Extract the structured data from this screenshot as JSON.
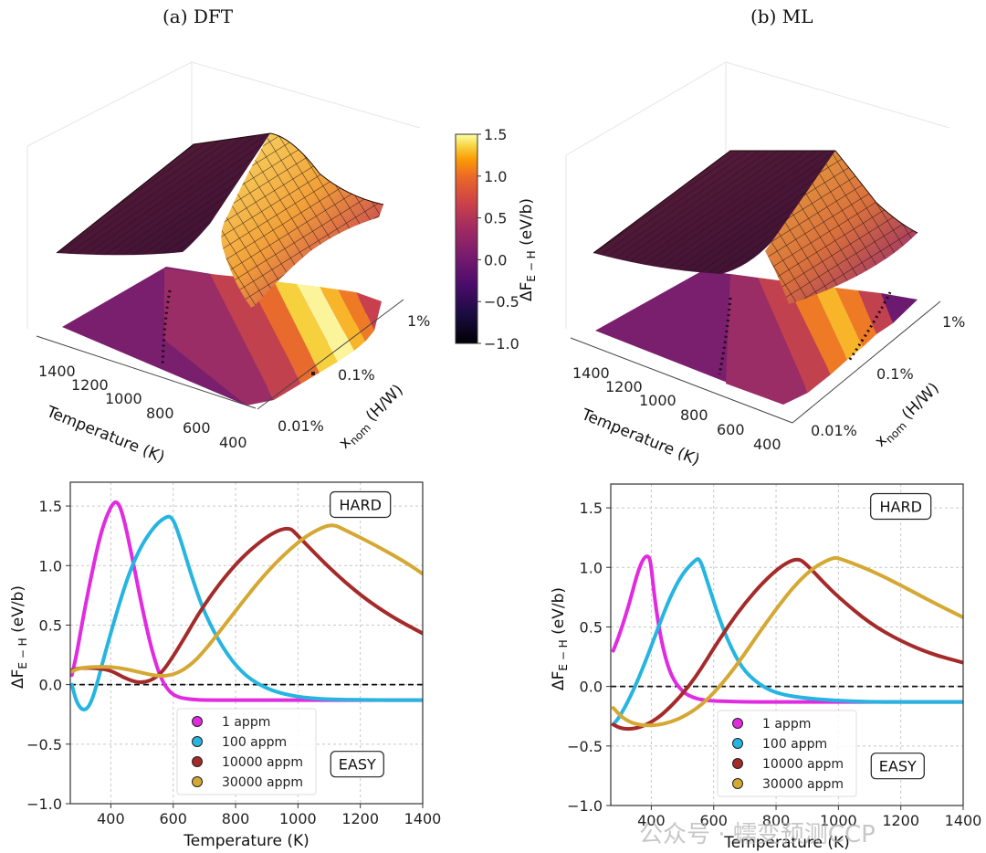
{
  "panels": [
    {
      "id": "a",
      "title": "(a) DFT"
    },
    {
      "id": "b",
      "title": "(b) ML"
    }
  ],
  "watermark": "公众号 · 蠕变预测CCP",
  "chart_data": [
    {
      "type": "surface3d",
      "panel": "(a) DFT",
      "xlabel": "Temperature (K)",
      "xticks": [
        "1400",
        "1200",
        "1000",
        "800",
        "600",
        "400"
      ],
      "ylabel": "x_nom (H/W)",
      "yticks": [
        "0.01%",
        "0.1%",
        "1%"
      ],
      "zlabel": "ΔF_{E−H} (eV/b)",
      "colormap": "inferno",
      "colorbar": {
        "label": "ΔF_{E-H} (eV/b)",
        "range": [
          -1.0,
          1.5
        ],
        "ticks": [
          "1.5",
          "1.0",
          "0.5",
          "0.0",
          "−0.5",
          "−1.0"
        ]
      },
      "description": "Surface with ridge of max ~1.5 eV/b, projected filled contour on floor with dotted zero-level line"
    },
    {
      "type": "surface3d",
      "panel": "(b) ML",
      "xlabel": "Temperature (K)",
      "xticks": [
        "1400",
        "1200",
        "1000",
        "800",
        "600",
        "400"
      ],
      "ylabel": "x_nom (H/W)",
      "yticks": [
        "0.01%",
        "0.1%",
        "1%"
      ],
      "colormap": "inferno",
      "description": "Surface with ridge of max ~1.1 eV/b, projected filled contour with two dotted zero-level lines"
    },
    {
      "type": "line",
      "panel": "(a) DFT",
      "xlabel": "Temperature (K)",
      "ylabel": "ΔF_{E−H} (eV/b)",
      "xlim": [
        270,
        1400
      ],
      "ylim": [
        -1.0,
        1.7
      ],
      "xticks": [
        "400",
        "600",
        "800",
        "1000",
        "1200",
        "1400"
      ],
      "yticks": [
        "−1.0",
        "−0.5",
        "0.0",
        "0.5",
        "1.0",
        "1.5"
      ],
      "grid": true,
      "zero_line": 0.0,
      "annotations": [
        "HARD",
        "EASY"
      ],
      "legend": "lower-center",
      "series": [
        {
          "name": "1 appm",
          "color": "#e02be0",
          "x": [
            275,
            290,
            310,
            340,
            370,
            400,
            420,
            440,
            470,
            500,
            530,
            560,
            590,
            620,
            660,
            700,
            800,
            900,
            1000,
            1200,
            1400
          ],
          "y": [
            0.08,
            0.25,
            0.55,
            0.95,
            1.3,
            1.5,
            1.55,
            1.42,
            1.05,
            0.65,
            0.3,
            0.05,
            -0.07,
            -0.11,
            -0.125,
            -0.13,
            -0.13,
            -0.13,
            -0.13,
            -0.13,
            -0.13
          ]
        },
        {
          "name": "100 appm",
          "color": "#25b5e0",
          "x": [
            275,
            290,
            310,
            330,
            350,
            380,
            420,
            460,
            500,
            540,
            570,
            595,
            620,
            660,
            700,
            760,
            820,
            880,
            950,
            1050,
            1200,
            1400
          ],
          "y": [
            0.0,
            -0.15,
            -0.22,
            -0.19,
            -0.05,
            0.25,
            0.62,
            0.95,
            1.18,
            1.33,
            1.4,
            1.42,
            1.25,
            0.9,
            0.6,
            0.3,
            0.1,
            -0.01,
            -0.08,
            -0.12,
            -0.13,
            -0.13
          ]
        },
        {
          "name": "10000 appm",
          "color": "#a52a2a",
          "x": [
            275,
            300,
            350,
            400,
            440,
            480,
            510,
            540,
            570,
            620,
            700,
            800,
            900,
            970,
            1000,
            1100,
            1200,
            1300,
            1400
          ],
          "y": [
            0.12,
            0.14,
            0.14,
            0.12,
            0.06,
            0.02,
            0.02,
            0.05,
            0.12,
            0.32,
            0.68,
            1.02,
            1.25,
            1.33,
            1.25,
            0.98,
            0.75,
            0.57,
            0.43
          ]
        },
        {
          "name": "30000 appm",
          "color": "#d4a833",
          "x": [
            275,
            300,
            350,
            400,
            450,
            500,
            550,
            600,
            650,
            700,
            800,
            900,
            1000,
            1060,
            1110,
            1150,
            1250,
            1350,
            1400
          ],
          "y": [
            0.11,
            0.14,
            0.15,
            0.15,
            0.13,
            0.1,
            0.07,
            0.08,
            0.15,
            0.28,
            0.62,
            0.95,
            1.2,
            1.3,
            1.35,
            1.3,
            1.17,
            1.02,
            0.93
          ]
        }
      ]
    },
    {
      "type": "line",
      "panel": "(b) ML",
      "xlabel": "Temperature (K)",
      "ylabel": "ΔF_{E−H} (eV/b)",
      "xlim": [
        270,
        1400
      ],
      "ylim": [
        -1.0,
        1.7
      ],
      "xticks": [
        "400",
        "600",
        "800",
        "1000",
        "1200",
        "1400"
      ],
      "yticks": [
        "−1.0",
        "−0.5",
        "0.0",
        "0.5",
        "1.0",
        "1.5"
      ],
      "grid": true,
      "zero_line": 0.0,
      "annotations": [
        "HARD",
        "EASY"
      ],
      "legend": "lower-center",
      "series": [
        {
          "name": "1 appm",
          "color": "#e02be0",
          "x": [
            278,
            300,
            330,
            355,
            375,
            390,
            398,
            410,
            430,
            460,
            500,
            540,
            580,
            640,
            700,
            800,
            1000,
            1200,
            1400
          ],
          "y": [
            0.3,
            0.45,
            0.7,
            0.95,
            1.08,
            1.1,
            1.05,
            0.75,
            0.4,
            0.1,
            -0.05,
            -0.1,
            -0.12,
            -0.125,
            -0.13,
            -0.13,
            -0.13,
            -0.13,
            -0.13
          ]
        },
        {
          "name": "100 appm",
          "color": "#25b5e0",
          "x": [
            278,
            300,
            340,
            380,
            420,
            460,
            500,
            540,
            555,
            580,
            620,
            660,
            700,
            760,
            820,
            900,
            1000,
            1100,
            1200,
            1400
          ],
          "y": [
            -0.32,
            -0.25,
            -0.05,
            0.2,
            0.48,
            0.75,
            0.95,
            1.06,
            1.08,
            0.88,
            0.55,
            0.3,
            0.12,
            -0.01,
            -0.07,
            -0.1,
            -0.12,
            -0.13,
            -0.13,
            -0.13
          ]
        },
        {
          "name": "10000 appm",
          "color": "#a52a2a",
          "x": [
            278,
            300,
            330,
            370,
            420,
            470,
            520,
            560,
            600,
            650,
            700,
            760,
            820,
            870,
            900,
            950,
            1000,
            1100,
            1200,
            1300,
            1400
          ],
          "y": [
            -0.32,
            -0.35,
            -0.36,
            -0.34,
            -0.27,
            -0.15,
            0.0,
            0.15,
            0.32,
            0.52,
            0.7,
            0.88,
            1.02,
            1.08,
            1.02,
            0.88,
            0.75,
            0.53,
            0.38,
            0.27,
            0.2
          ]
        },
        {
          "name": "30000 appm",
          "color": "#d4a833",
          "x": [
            278,
            310,
            350,
            400,
            450,
            500,
            560,
            620,
            680,
            740,
            800,
            860,
            920,
            980,
            1000,
            1100,
            1200,
            1300,
            1400
          ],
          "y": [
            -0.18,
            -0.27,
            -0.32,
            -0.33,
            -0.31,
            -0.26,
            -0.16,
            0.0,
            0.2,
            0.43,
            0.65,
            0.85,
            1.0,
            1.08,
            1.08,
            0.98,
            0.85,
            0.71,
            0.58
          ]
        }
      ]
    }
  ]
}
